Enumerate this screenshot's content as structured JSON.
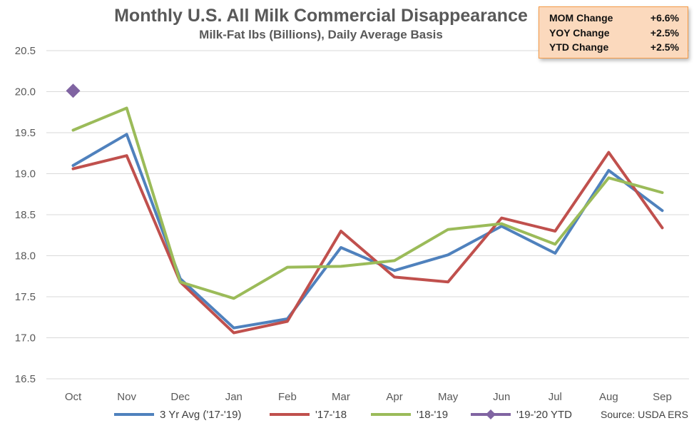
{
  "stats": [
    {
      "label": "MOM Change",
      "value": "+6.6%"
    },
    {
      "label": "YOY Change",
      "value": "+2.5%"
    },
    {
      "label": "YTD Change",
      "value": "+2.5%"
    }
  ],
  "source": "Source: USDA ERS",
  "colors": {
    "avg": "#4f81bd",
    "y1718": "#c0504d",
    "y1819": "#9bbb59",
    "ytd": "#8064a2",
    "grid": "#d9d9d9",
    "text": "#595959"
  },
  "chart_data": {
    "type": "line",
    "title": "Monthly U.S. All Milk Commercial Disappearance",
    "subtitle": "Milk-Fat lbs (Billions), Daily Average Basis",
    "categories": [
      "Oct",
      "Nov",
      "Dec",
      "Jan",
      "Feb",
      "Mar",
      "Apr",
      "May",
      "Jun",
      "Jul",
      "Aug",
      "Sep"
    ],
    "ylim": [
      16.5,
      20.5
    ],
    "yticks": [
      "16.5",
      "17.0",
      "17.5",
      "18.0",
      "18.5",
      "19.0",
      "19.5",
      "20.0",
      "20.5"
    ],
    "grid": true,
    "legend_position": "bottom",
    "series": [
      {
        "name": "3 Yr Avg ('17-'19)",
        "key": "avg",
        "marker": "none",
        "values": [
          19.1,
          19.48,
          17.72,
          17.12,
          17.23,
          18.1,
          17.82,
          18.01,
          18.36,
          18.03,
          19.04,
          18.55
        ]
      },
      {
        "name": "'17-'18",
        "key": "y1718",
        "marker": "none",
        "values": [
          19.06,
          19.22,
          17.68,
          17.06,
          17.2,
          18.3,
          17.74,
          17.68,
          18.46,
          18.3,
          19.26,
          18.34
        ]
      },
      {
        "name": "'18-'19",
        "key": "y1819",
        "marker": "none",
        "values": [
          19.53,
          19.8,
          17.68,
          17.48,
          17.86,
          17.87,
          17.94,
          18.32,
          18.39,
          18.14,
          18.95,
          18.77
        ]
      },
      {
        "name": "'19-'20 YTD",
        "key": "ytd",
        "marker": "diamond",
        "values": [
          20.01,
          null,
          null,
          null,
          null,
          null,
          null,
          null,
          null,
          null,
          null,
          null
        ]
      }
    ]
  }
}
